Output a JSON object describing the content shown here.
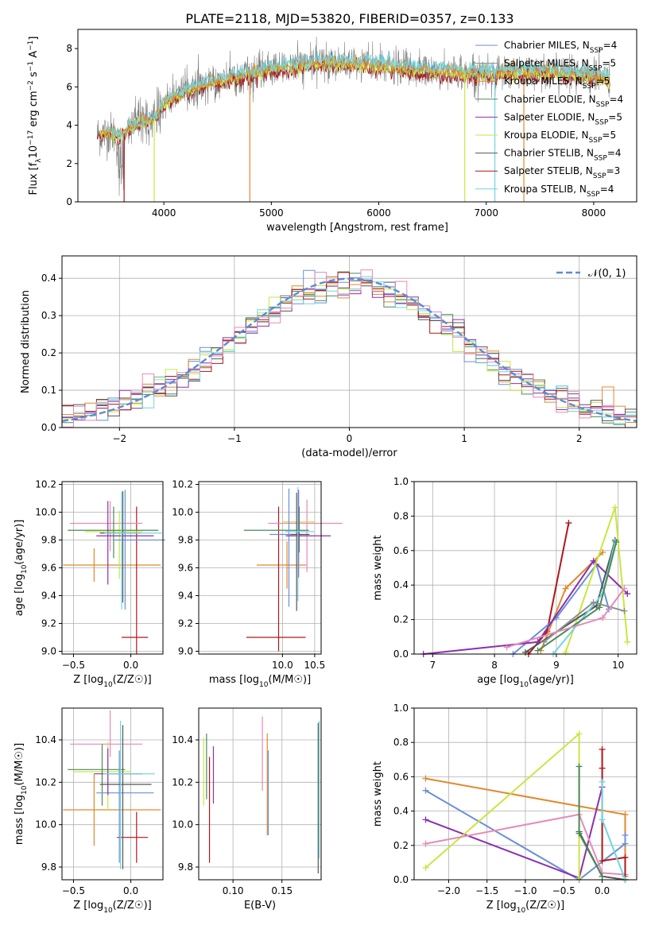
{
  "title": "PLATE=2118, MJD=53820, FIBERID=0357, z=0.133",
  "colors": {
    "Chabrier MILES": "#6a8fd8",
    "Salpeter MILES": "#8e8e8e",
    "Kroupa MILES": "#e08a2c",
    "Chabrier ELODIE": "#4a8a5a",
    "Salpeter ELODIE": "#8b2fb0",
    "Kroupa ELODIE": "#c8e640",
    "Chabrier STELIB": "#555555",
    "Salpeter STELIB": "#b0161a",
    "Kroupa STELIB": "#6fd6e0",
    "Extra": "#e68ab8"
  },
  "chart_data": [
    {
      "type": "line",
      "id": "spectrum",
      "title": "PLATE=2118, MJD=53820, FIBERID=0357, z=0.133",
      "xlabel": "wavelength [Angstrom, rest frame]",
      "ylabel": "Flux [f_λ10^-17 erg cm^-2 s^-1 A^-1]",
      "xlim": [
        3200,
        8400
      ],
      "ylim": [
        0,
        9
      ],
      "xticks": [
        "4000",
        "5000",
        "6000",
        "7000",
        "8000"
      ],
      "yticks": [
        "0",
        "2",
        "4",
        "6",
        "8"
      ],
      "continuum": {
        "x": [
          3380,
          3500,
          3600,
          3700,
          3800,
          3900,
          4000,
          4200,
          4500,
          5000,
          5500,
          6000,
          6500,
          7000,
          7500,
          8000,
          8150
        ],
        "y": [
          3.5,
          3.6,
          3.4,
          4.0,
          4.2,
          4.3,
          5.1,
          5.8,
          6.3,
          6.9,
          7.3,
          7.1,
          6.8,
          6.7,
          6.8,
          6.6,
          6.4
        ]
      },
      "legend": [
        "Chabrier MILES, N_SSP=4",
        "Salpeter MILES, N_SSP=5",
        "Kroupa MILES, N_SSP=5",
        "Chabrier ELODIE, N_SSP=4",
        "Salpeter ELODIE, N_SSP=5",
        "Kroupa ELODIE, N_SSP=5",
        "Chabrier STELIB, N_SSP=4",
        "Salpeter STELIB, N_SSP=3",
        "Kroupa STELIB, N_SSP=4"
      ]
    },
    {
      "type": "line",
      "id": "residuals",
      "xlabel": "(data-model)/error",
      "ylabel": "Normed distribution",
      "xlim": [
        -2.5,
        2.5
      ],
      "ylim": [
        0,
        0.46
      ],
      "xticks": [
        "−2",
        "−1",
        "0",
        "1",
        "2"
      ],
      "yticks": [
        "0.0",
        "0.1",
        "0.2",
        "0.3",
        "0.4"
      ],
      "legend": [
        "𝒩(0, 1)"
      ],
      "bin_width": 0.1
    },
    {
      "type": "scatter",
      "id": "age-vs-Z",
      "xlabel": "Z [log10(Z/Z☉)]",
      "ylabel": "age [log10(age/yr)]",
      "xlim": [
        -0.6,
        0.28
      ],
      "ylim": [
        8.98,
        10.22
      ],
      "xticks": [
        "−0.5",
        "0.0"
      ],
      "yticks": [
        "9.0",
        "9.2",
        "9.4",
        "9.6",
        "9.8",
        "10.0",
        "10.2"
      ],
      "points": [
        {
          "x": -0.32,
          "y": 9.62,
          "xerr": [
            0.27,
            0.58
          ],
          "yerr": [
            0.12,
            0.12
          ],
          "color": "#e08a2c"
        },
        {
          "x": 0.05,
          "y": 9.1,
          "xerr": [
            0.13,
            0.1
          ],
          "yerr": [
            0.12,
            0.94
          ],
          "color": "#b0161a"
        },
        {
          "x": -0.18,
          "y": 9.92,
          "xerr": [
            0.35,
            0.28
          ],
          "yerr": [
            0.2,
            0.16
          ],
          "color": "#e68ab8"
        },
        {
          "x": -0.1,
          "y": 9.86,
          "xerr": [
            0.3,
            0.2
          ],
          "yerr": [
            0.34,
            0.15
          ],
          "color": "#c8e640"
        },
        {
          "x": -0.15,
          "y": 9.87,
          "xerr": [
            0.4,
            0.39
          ],
          "yerr": [
            0.2,
            0.17
          ],
          "color": "#4a8a5a"
        },
        {
          "x": -0.05,
          "y": 9.8,
          "xerr": [
            0.1,
            0.35
          ],
          "yerr": [
            0.5,
            0.36
          ],
          "color": "#6a8fd8"
        },
        {
          "x": -0.2,
          "y": 9.83,
          "xerr": [
            0.1,
            0.4
          ],
          "yerr": [
            0.35,
            0.25
          ],
          "color": "#8b2fb0"
        },
        {
          "x": -0.07,
          "y": 9.85,
          "xerr": [
            0.2,
            0.15
          ],
          "yerr": [
            0.5,
            0.3
          ],
          "color": "#555555"
        },
        {
          "x": -0.08,
          "y": 9.85,
          "xerr": [
            0.15,
            0.35
          ],
          "yerr": [
            0.55,
            0.3
          ],
          "color": "#6fd6e0"
        }
      ]
    },
    {
      "type": "scatter",
      "id": "age-vs-mass",
      "xlabel": "mass [log10(M/M☉)]",
      "ylabel": "",
      "xlim": [
        8.7,
        10.6
      ],
      "ylim": [
        8.98,
        10.22
      ],
      "xticks": [
        "10.0",
        "10.5"
      ],
      "yticks": [
        "9.0",
        "9.2",
        "9.4",
        "9.6",
        "9.8",
        "10.0",
        "10.2"
      ],
      "points": [
        {
          "x": 10.07,
          "y": 9.62,
          "xerr": [
            0.47,
            0.3
          ],
          "yerr": [
            0.17,
            0.17
          ],
          "color": "#e08a2c"
        },
        {
          "x": 9.94,
          "y": 9.1,
          "xerr": [
            0.5,
            0.42
          ],
          "yerr": [
            0.1,
            0.94
          ],
          "color": "#b0161a"
        },
        {
          "x": 10.38,
          "y": 9.92,
          "xerr": [
            0.6,
            0.55
          ],
          "yerr": [
            0.35,
            0.17
          ],
          "color": "#e68ab8"
        },
        {
          "x": 10.25,
          "y": 9.93,
          "xerr": [
            0.25,
            0.25
          ],
          "yerr": [
            0.33,
            0.1
          ],
          "color": "#c8e640"
        },
        {
          "x": 10.26,
          "y": 9.87,
          "xerr": [
            0.86,
            0.15
          ],
          "yerr": [
            0.16,
            0.17
          ],
          "color": "#4a8a5a"
        },
        {
          "x": 10.1,
          "y": 9.84,
          "xerr": [
            0.3,
            0.2
          ],
          "yerr": [
            0.52,
            0.33
          ],
          "color": "#6a8fd8"
        },
        {
          "x": 10.25,
          "y": 9.83,
          "xerr": [
            0.2,
            0.5
          ],
          "yerr": [
            0.3,
            0.33
          ],
          "color": "#8b2fb0"
        },
        {
          "x": 10.22,
          "y": 9.84,
          "xerr": [
            0.1,
            0.2
          ],
          "yerr": [
            0.55,
            0.3
          ],
          "color": "#555555"
        },
        {
          "x": 10.24,
          "y": 9.86,
          "xerr": [
            0.2,
            0.25
          ],
          "yerr": [
            0.5,
            0.32
          ],
          "color": "#6fd6e0"
        }
      ]
    },
    {
      "type": "line",
      "id": "weight-vs-age",
      "xlabel": "age [log10(age/yr)]",
      "ylabel": "mass weight",
      "xlim": [
        6.7,
        10.3
      ],
      "ylim": [
        0,
        1
      ],
      "xticks": [
        "7",
        "8",
        "9",
        "10"
      ],
      "yticks": [
        "0.0",
        "0.2",
        "0.4",
        "0.6",
        "0.8",
        "1.0"
      ],
      "series": [
        {
          "color": "#b0161a",
          "x": [
            8.55,
            8.85,
            9.2
          ],
          "y": [
            0.0,
            0.13,
            0.76
          ]
        },
        {
          "color": "#e08a2c",
          "x": [
            8.75,
            9.15,
            9.75
          ],
          "y": [
            0.02,
            0.38,
            0.59
          ]
        },
        {
          "color": "#6a8fd8",
          "x": [
            8.3,
            9.0,
            9.65,
            9.85
          ],
          "y": [
            0.0,
            0.21,
            0.52,
            0.26
          ]
        },
        {
          "color": "#8b2fb0",
          "x": [
            6.85,
            8.7,
            9.6,
            10.15
          ],
          "y": [
            0.0,
            0.07,
            0.54,
            0.35
          ]
        },
        {
          "color": "#c8e640",
          "x": [
            9.15,
            9.95,
            10.15
          ],
          "y": [
            0.01,
            0.85,
            0.07
          ]
        },
        {
          "color": "#555555",
          "x": [
            8.5,
            9.65,
            9.95
          ],
          "y": [
            0.01,
            0.28,
            0.66
          ]
        },
        {
          "color": "#6fd6e0",
          "x": [
            8.95,
            9.75,
            9.95
          ],
          "y": [
            0.0,
            0.35,
            0.65
          ]
        },
        {
          "color": "#4a8a5a",
          "x": [
            8.7,
            9.7,
            9.97
          ],
          "y": [
            0.02,
            0.27,
            0.65
          ]
        },
        {
          "color": "#8e8e8e",
          "x": [
            8.8,
            9.6,
            10.1
          ],
          "y": [
            0.07,
            0.3,
            0.25
          ]
        },
        {
          "color": "#e68ab8",
          "x": [
            8.2,
            9.75,
            10.1
          ],
          "y": [
            0.04,
            0.21,
            0.38
          ]
        }
      ]
    },
    {
      "type": "scatter",
      "id": "mass-vs-Z",
      "xlabel": "Z [log10(Z/Z☉)]",
      "ylabel": "mass [log10(M/M☉)]",
      "xlim": [
        -0.6,
        0.28
      ],
      "ylim": [
        9.74,
        10.55
      ],
      "xticks": [
        "−0.5",
        "0.0"
      ],
      "yticks": [
        "9.8",
        "10.0",
        "10.2",
        "10.4"
      ],
      "points": [
        {
          "x": -0.32,
          "y": 10.07,
          "xerr": [
            0.27,
            0.58
          ],
          "yerr": [
            0.17,
            0.17
          ],
          "color": "#e08a2c"
        },
        {
          "x": 0.05,
          "y": 9.94,
          "xerr": [
            0.17,
            0.1
          ],
          "yerr": [
            0.12,
            0.12
          ],
          "color": "#b0161a"
        },
        {
          "x": -0.18,
          "y": 10.38,
          "xerr": [
            0.35,
            0.28
          ],
          "yerr": [
            0.06,
            0.16
          ],
          "color": "#e68ab8"
        },
        {
          "x": -0.2,
          "y": 10.25,
          "xerr": [
            0.3,
            0.2
          ],
          "yerr": [
            0.18,
            0.14
          ],
          "color": "#c8e640"
        },
        {
          "x": -0.25,
          "y": 10.26,
          "xerr": [
            0.3,
            0.2
          ],
          "yerr": [
            0.17,
            0.12
          ],
          "color": "#4a8a5a"
        },
        {
          "x": -0.1,
          "y": 10.15,
          "xerr": [
            0.2,
            0.3
          ],
          "yerr": [
            0.33,
            0.2
          ],
          "color": "#6a8fd8"
        },
        {
          "x": -0.2,
          "y": 10.24,
          "xerr": [
            0.12,
            0.3
          ],
          "yerr": [
            0.1,
            0.12
          ],
          "color": "#8b2fb0"
        },
        {
          "x": -0.07,
          "y": 10.19,
          "xerr": [
            0.2,
            0.25
          ],
          "yerr": [
            0.4,
            0.28
          ],
          "color": "#555555"
        },
        {
          "x": -0.09,
          "y": 10.24,
          "xerr": [
            0.15,
            0.3
          ],
          "yerr": [
            0.45,
            0.25
          ],
          "color": "#6fd6e0"
        }
      ]
    },
    {
      "type": "scatter",
      "id": "mass-vs-ebv",
      "xlabel": "E(B-V)",
      "ylabel": "",
      "xlim": [
        0.065,
        0.19
      ],
      "ylim": [
        9.74,
        10.55
      ],
      "xticks": [
        "0.10",
        "0.15"
      ],
      "yticks": [
        "9.8",
        "10.0",
        "10.2",
        "10.4"
      ],
      "points": [
        {
          "x": 0.135,
          "y": 10.07,
          "xerr": [
            0,
            0
          ],
          "yerr": [
            0.12,
            0.36
          ],
          "color": "#e08a2c"
        },
        {
          "x": 0.076,
          "y": 9.94,
          "xerr": [
            0,
            0
          ],
          "yerr": [
            0.12,
            0.38
          ],
          "color": "#b0161a"
        },
        {
          "x": 0.13,
          "y": 10.38,
          "xerr": [
            0,
            0
          ],
          "yerr": [
            0.22,
            0.13
          ],
          "color": "#e68ab8"
        },
        {
          "x": 0.07,
          "y": 10.25,
          "xerr": [
            0,
            0
          ],
          "yerr": [
            0.16,
            0.16
          ],
          "color": "#c8e640"
        },
        {
          "x": 0.073,
          "y": 10.26,
          "xerr": [
            0,
            0
          ],
          "yerr": [
            0.14,
            0.17
          ],
          "color": "#4a8a5a"
        },
        {
          "x": 0.136,
          "y": 10.15,
          "xerr": [
            0,
            0
          ],
          "yerr": [
            0.2,
            0.2
          ],
          "color": "#6a8fd8"
        },
        {
          "x": 0.08,
          "y": 10.24,
          "xerr": [
            0,
            0
          ],
          "yerr": [
            0.14,
            0.13
          ],
          "color": "#8b2fb0"
        },
        {
          "x": 0.187,
          "y": 10.19,
          "xerr": [
            0,
            0
          ],
          "yerr": [
            0.42,
            0.29
          ],
          "color": "#555555"
        },
        {
          "x": 0.188,
          "y": 10.24,
          "xerr": [
            0,
            0
          ],
          "yerr": [
            0.4,
            0.25
          ],
          "color": "#6fd6e0"
        }
      ]
    },
    {
      "type": "line",
      "id": "weight-vs-Z",
      "xlabel": "Z [log10(Z/Z☉)]",
      "ylabel": "mass weight",
      "xlim": [
        -2.45,
        0.45
      ],
      "ylim": [
        0,
        1
      ],
      "xticks": [
        "−2.0",
        "−1.5",
        "−1.0",
        "−0.5",
        "0.0"
      ],
      "yticks": [
        "0.0",
        "0.2",
        "0.4",
        "0.6",
        "0.8",
        "1.0"
      ],
      "series": [
        {
          "color": "#e08a2c",
          "x": [
            -2.3,
            0.3,
            0.3
          ],
          "y": [
            0.59,
            0.38,
            0.02
          ]
        },
        {
          "color": "#6a8fd8",
          "x": [
            -2.3,
            -0.3,
            0.3,
            0.3
          ],
          "y": [
            0.52,
            0.0,
            0.21,
            0.26
          ]
        },
        {
          "color": "#8b2fb0",
          "x": [
            -2.3,
            -0.3,
            0.0
          ],
          "y": [
            0.35,
            0.01,
            0.54
          ]
        },
        {
          "color": "#c8e640",
          "x": [
            -2.3,
            -0.3,
            -0.3
          ],
          "y": [
            0.07,
            0.85,
            0.01
          ]
        },
        {
          "color": "#e68ab8",
          "x": [
            -2.3,
            -0.3,
            0.0,
            0.3
          ],
          "y": [
            0.21,
            0.38,
            0.04,
            0.03
          ]
        },
        {
          "color": "#b0161a",
          "x": [
            0.0,
            0.0,
            0.0,
            0.3,
            0.3
          ],
          "y": [
            0.76,
            0.65,
            0.11,
            0.13,
            0.0
          ]
        },
        {
          "color": "#555555",
          "x": [
            -0.3,
            0.0,
            0.3
          ],
          "y": [
            0.28,
            0.02,
            0.0
          ]
        },
        {
          "color": "#6fd6e0",
          "x": [
            0.0,
            0.0,
            0.3
          ],
          "y": [
            0.57,
            0.35,
            0.0
          ]
        },
        {
          "color": "#4a8a5a",
          "x": [
            -0.3,
            -0.3,
            0.0
          ],
          "y": [
            0.66,
            0.27,
            0.02
          ]
        }
      ]
    }
  ]
}
